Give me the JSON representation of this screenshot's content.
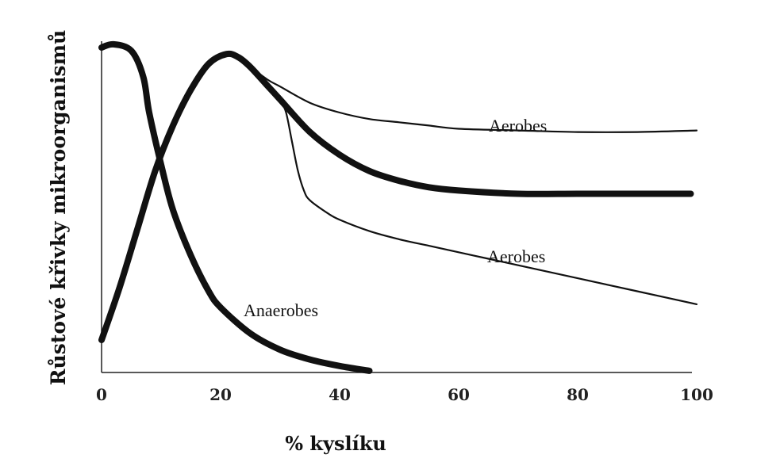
{
  "chart_data": {
    "type": "line",
    "title": "",
    "xlabel": "% kyslíku",
    "ylabel": "Růstové křivky mikroorganismů",
    "xlim": [
      0,
      100
    ],
    "ylim": [
      0,
      100
    ],
    "x_ticks": [
      "0",
      "20",
      "40",
      "60",
      "80",
      "100"
    ],
    "y_ticks": [],
    "grid": false,
    "legend": "none",
    "series": [
      {
        "name": "Anaerobes",
        "weight": "thick",
        "x": [
          0,
          2,
          5,
          7,
          8,
          10,
          12,
          15,
          18,
          20,
          25,
          30,
          35,
          40,
          45
        ],
        "y": [
          100,
          101,
          99,
          91,
          80,
          64,
          50,
          36,
          25,
          20,
          12,
          7,
          4,
          2,
          0.5
        ]
      },
      {
        "name": "",
        "weight": "thick",
        "x": [
          0,
          3,
          6,
          9,
          12,
          15,
          18,
          21,
          23,
          25,
          28,
          30,
          35,
          40,
          45,
          50,
          55,
          60,
          70,
          80,
          90,
          99
        ],
        "y": [
          10,
          26,
          44,
          62,
          76,
          87,
          95,
          98,
          97,
          94,
          88,
          84,
          74,
          67,
          62,
          59,
          57,
          56,
          55,
          55,
          55,
          55
        ]
      },
      {
        "name": "Aerobes",
        "weight": "thin",
        "x": [
          25,
          28,
          30,
          35,
          40,
          45,
          50,
          55,
          60,
          70,
          80,
          90,
          100
        ],
        "y": [
          94,
          90,
          88,
          83,
          80,
          78,
          77,
          76,
          75,
          74.5,
          74,
          74,
          74.5
        ]
      },
      {
        "name": "Aerobes",
        "weight": "thin",
        "x": [
          30,
          31,
          32,
          33,
          34,
          35,
          38,
          40,
          45,
          50,
          55,
          60,
          65,
          70,
          80,
          90,
          100
        ],
        "y": [
          84,
          80,
          71,
          62,
          56,
          53,
          49,
          47,
          43.5,
          41,
          39,
          37,
          35,
          33,
          29,
          25,
          21
        ]
      }
    ],
    "annotations": [
      "Aerobes",
      "Aerobes",
      "Anaerobes"
    ]
  }
}
